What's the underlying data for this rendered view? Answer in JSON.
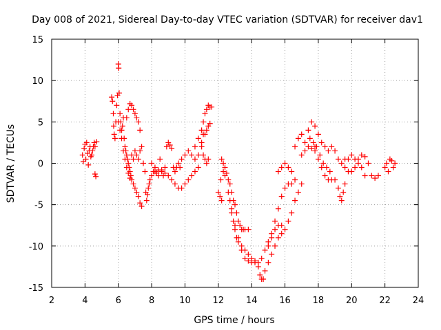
{
  "chart_data": {
    "type": "scatter",
    "title": "Day 008 of 2021, Sidereal Day-to-day VTEC variation (SDTVAR) for receiver dav1",
    "xlabel": "GPS time / hours",
    "ylabel": "SDTVAR / TECUs",
    "xlim": [
      2,
      24
    ],
    "ylim": [
      -15,
      15
    ],
    "xticks": [
      2,
      4,
      6,
      8,
      10,
      12,
      14,
      16,
      18,
      20,
      22,
      24
    ],
    "yticks": [
      -15,
      -10,
      -5,
      0,
      5,
      10,
      15
    ],
    "xtick_labels": [
      "2",
      "4",
      "6",
      "8",
      "10",
      "12",
      "14",
      "16",
      "18",
      "20",
      "22",
      "24"
    ],
    "ytick_labels": [
      "-15",
      "-10",
      "-5",
      "0",
      "5",
      "10",
      "15"
    ],
    "grid": true,
    "marker": "+",
    "marker_color": "#ff0000",
    "series": [
      {
        "name": "SDTVAR",
        "points": [
          [
            3.85,
            1.0
          ],
          [
            3.9,
            0.2
          ],
          [
            3.95,
            1.8
          ],
          [
            4.0,
            2.3
          ],
          [
            4.05,
            0.5
          ],
          [
            4.1,
            2.5
          ],
          [
            4.15,
            1.2
          ],
          [
            4.2,
            -0.2
          ],
          [
            4.25,
            1.5
          ],
          [
            4.3,
            2.0
          ],
          [
            4.35,
            0.8
          ],
          [
            4.4,
            1.0
          ],
          [
            4.45,
            1.5
          ],
          [
            4.5,
            2.0
          ],
          [
            4.55,
            2.5
          ],
          [
            4.6,
            2.0
          ],
          [
            4.6,
            -1.3
          ],
          [
            4.65,
            -1.6
          ],
          [
            4.7,
            2.6
          ],
          [
            5.6,
            8.0
          ],
          [
            5.65,
            7.5
          ],
          [
            5.7,
            6.0
          ],
          [
            5.72,
            4.5
          ],
          [
            5.75,
            3.5
          ],
          [
            5.8,
            3.0
          ],
          [
            5.85,
            5.0
          ],
          [
            5.9,
            7.0
          ],
          [
            5.95,
            8.2
          ],
          [
            6.0,
            12.0
          ],
          [
            6.02,
            11.5
          ],
          [
            6.05,
            8.5
          ],
          [
            6.1,
            6.0
          ],
          [
            6.15,
            5.0
          ],
          [
            6.2,
            4.0
          ],
          [
            6.25,
            4.5
          ],
          [
            6.3,
            5.5
          ],
          [
            6.35,
            3.0
          ],
          [
            6.4,
            2.0
          ],
          [
            6.45,
            1.5
          ],
          [
            6.5,
            1.0
          ],
          [
            6.55,
            0.5
          ],
          [
            6.6,
            0.0
          ],
          [
            6.65,
            -0.5
          ],
          [
            6.7,
            -1.0
          ],
          [
            6.75,
            -1.5
          ],
          [
            6.8,
            -2.0
          ],
          [
            6.5,
            5.5
          ],
          [
            6.6,
            6.5
          ],
          [
            6.7,
            7.2
          ],
          [
            6.8,
            7.0
          ],
          [
            6.9,
            6.5
          ],
          [
            7.0,
            6.0
          ],
          [
            7.1,
            5.5
          ],
          [
            7.2,
            5.0
          ],
          [
            7.3,
            4.0
          ],
          [
            6.0,
            5.0
          ],
          [
            6.1,
            4.0
          ],
          [
            6.2,
            3.0
          ],
          [
            6.3,
            1.5
          ],
          [
            6.4,
            0.5
          ],
          [
            6.5,
            -0.5
          ],
          [
            6.6,
            -1.2
          ],
          [
            6.7,
            -1.8
          ],
          [
            6.9,
            -2.5
          ],
          [
            7.0,
            -3.0
          ],
          [
            7.1,
            -3.5
          ],
          [
            7.2,
            -4.0
          ],
          [
            7.3,
            -4.8
          ],
          [
            7.4,
            -5.2
          ],
          [
            6.8,
            1.0
          ],
          [
            6.9,
            0.5
          ],
          [
            7.0,
            1.5
          ],
          [
            7.1,
            1.0
          ],
          [
            7.2,
            0.5
          ],
          [
            7.3,
            1.5
          ],
          [
            7.4,
            2.0
          ],
          [
            7.5,
            0.0
          ],
          [
            7.6,
            -1.0
          ],
          [
            7.65,
            -3.5
          ],
          [
            7.7,
            -4.5
          ],
          [
            7.75,
            -3.8
          ],
          [
            7.8,
            -3.0
          ],
          [
            7.85,
            -2.5
          ],
          [
            7.9,
            -2.0
          ],
          [
            8.0,
            -1.5
          ],
          [
            8.1,
            -1.0
          ],
          [
            8.2,
            -0.5
          ],
          [
            8.3,
            -1.2
          ],
          [
            8.4,
            -0.8
          ],
          [
            8.5,
            0.5
          ],
          [
            8.6,
            -1.0
          ],
          [
            8.7,
            -1.5
          ],
          [
            8.8,
            -0.5
          ],
          [
            8.9,
            2.0
          ],
          [
            9.0,
            2.5
          ],
          [
            9.1,
            2.2
          ],
          [
            9.2,
            1.8
          ],
          [
            9.3,
            -0.5
          ],
          [
            9.4,
            -1.0
          ],
          [
            9.5,
            -0.5
          ],
          [
            9.6,
            0.0
          ],
          [
            9.7,
            -0.5
          ],
          [
            8.0,
            0.0
          ],
          [
            8.2,
            -1.0
          ],
          [
            8.4,
            -1.5
          ],
          [
            8.6,
            -0.8
          ],
          [
            8.8,
            -1.2
          ],
          [
            9.0,
            -1.5
          ],
          [
            9.2,
            -2.0
          ],
          [
            9.4,
            -2.5
          ],
          [
            9.6,
            -3.0
          ],
          [
            9.8,
            -3.0
          ],
          [
            10.0,
            -2.5
          ],
          [
            10.2,
            -2.0
          ],
          [
            10.4,
            -1.5
          ],
          [
            10.6,
            -1.0
          ],
          [
            10.8,
            -0.5
          ],
          [
            9.8,
            0.5
          ],
          [
            10.0,
            1.0
          ],
          [
            10.2,
            1.5
          ],
          [
            10.4,
            1.0
          ],
          [
            10.6,
            0.5
          ],
          [
            10.8,
            1.0
          ],
          [
            11.0,
            2.5
          ],
          [
            11.1,
            3.5
          ],
          [
            10.6,
            2.0
          ],
          [
            10.8,
            3.0
          ],
          [
            11.0,
            4.0
          ],
          [
            11.1,
            5.0
          ],
          [
            11.2,
            6.0
          ],
          [
            11.3,
            6.5
          ],
          [
            11.4,
            7.0
          ],
          [
            11.5,
            6.8
          ],
          [
            11.6,
            6.8
          ],
          [
            11.2,
            3.5
          ],
          [
            11.3,
            4.0
          ],
          [
            11.4,
            4.5
          ],
          [
            11.5,
            4.8
          ],
          [
            11.0,
            2.0
          ],
          [
            11.1,
            1.0
          ],
          [
            11.2,
            0.5
          ],
          [
            11.3,
            0.0
          ],
          [
            11.4,
            0.5
          ],
          [
            12.0,
            -3.5
          ],
          [
            12.1,
            -4.0
          ],
          [
            12.2,
            -4.5
          ],
          [
            12.15,
            -2.0
          ],
          [
            12.3,
            -1.0
          ],
          [
            12.4,
            -1.5
          ],
          [
            12.2,
            0.5
          ],
          [
            12.3,
            0.0
          ],
          [
            12.4,
            -0.5
          ],
          [
            12.5,
            -1.2
          ],
          [
            12.6,
            -2.0
          ],
          [
            12.7,
            -2.5
          ],
          [
            12.8,
            -3.5
          ],
          [
            12.9,
            -4.5
          ],
          [
            13.0,
            -5.0
          ],
          [
            13.1,
            -6.0
          ],
          [
            13.2,
            -7.0
          ],
          [
            13.3,
            -7.5
          ],
          [
            13.4,
            -8.0
          ],
          [
            13.5,
            -8.0
          ],
          [
            13.6,
            -8.0
          ],
          [
            13.8,
            -8.0
          ],
          [
            12.6,
            -3.5
          ],
          [
            12.7,
            -4.5
          ],
          [
            12.8,
            -5.5
          ],
          [
            12.9,
            -7.0
          ],
          [
            13.0,
            -8.0
          ],
          [
            13.1,
            -9.0
          ],
          [
            13.2,
            -9.5
          ],
          [
            13.4,
            -10.0
          ],
          [
            13.6,
            -10.5
          ],
          [
            13.8,
            -11.0
          ],
          [
            14.0,
            -11.5
          ],
          [
            14.2,
            -11.8
          ],
          [
            14.4,
            -12.0
          ],
          [
            14.6,
            -11.5
          ],
          [
            14.8,
            -10.5
          ],
          [
            15.0,
            -9.5
          ],
          [
            15.2,
            -8.5
          ],
          [
            15.4,
            -8.0
          ],
          [
            15.6,
            -7.5
          ],
          [
            15.8,
            -7.5
          ],
          [
            12.8,
            -6.0
          ],
          [
            13.0,
            -7.5
          ],
          [
            13.2,
            -9.0
          ],
          [
            13.4,
            -10.5
          ],
          [
            13.6,
            -11.5
          ],
          [
            13.8,
            -11.8
          ],
          [
            14.0,
            -12.0
          ],
          [
            14.2,
            -12.0
          ],
          [
            14.4,
            -12.5
          ],
          [
            14.5,
            -13.5
          ],
          [
            14.6,
            -14.0
          ],
          [
            14.7,
            -14.0
          ],
          [
            14.8,
            -13.0
          ],
          [
            15.0,
            -12.0
          ],
          [
            15.2,
            -11.0
          ],
          [
            15.4,
            -10.0
          ],
          [
            15.6,
            -9.0
          ],
          [
            15.8,
            -8.5
          ],
          [
            16.0,
            -8.0
          ],
          [
            16.2,
            -7.0
          ],
          [
            16.4,
            -6.0
          ],
          [
            16.6,
            -4.5
          ],
          [
            16.8,
            -3.5
          ],
          [
            17.0,
            -2.5
          ],
          [
            15.0,
            -10.0
          ],
          [
            15.2,
            -9.0
          ],
          [
            15.4,
            -7.0
          ],
          [
            15.6,
            -5.5
          ],
          [
            15.8,
            -4.0
          ],
          [
            16.0,
            -3.0
          ],
          [
            16.2,
            -2.5
          ],
          [
            16.4,
            -2.5
          ],
          [
            16.6,
            -2.0
          ],
          [
            15.6,
            -1.0
          ],
          [
            15.8,
            -0.5
          ],
          [
            16.0,
            0.0
          ],
          [
            16.2,
            -0.5
          ],
          [
            16.4,
            -1.0
          ],
          [
            16.6,
            2.0
          ],
          [
            16.8,
            3.0
          ],
          [
            17.0,
            3.5
          ],
          [
            17.2,
            2.5
          ],
          [
            17.4,
            2.0
          ],
          [
            17.6,
            1.8
          ],
          [
            17.8,
            2.0
          ],
          [
            17.0,
            1.0
          ],
          [
            17.2,
            1.5
          ],
          [
            17.4,
            4.0
          ],
          [
            17.6,
            5.0
          ],
          [
            17.8,
            4.5
          ],
          [
            18.0,
            3.5
          ],
          [
            18.2,
            2.5
          ],
          [
            18.4,
            2.0
          ],
          [
            17.5,
            3.0
          ],
          [
            17.7,
            2.5
          ],
          [
            17.9,
            2.0
          ],
          [
            18.1,
            1.0
          ],
          [
            18.3,
            0.0
          ],
          [
            18.5,
            -0.5
          ],
          [
            18.7,
            -1.0
          ],
          [
            17.8,
            1.5
          ],
          [
            18.0,
            0.5
          ],
          [
            18.2,
            -0.5
          ],
          [
            18.4,
            -1.5
          ],
          [
            18.6,
            -2.0
          ],
          [
            18.8,
            -2.0
          ],
          [
            19.0,
            -2.0
          ],
          [
            18.6,
            1.5
          ],
          [
            18.8,
            2.0
          ],
          [
            19.0,
            1.5
          ],
          [
            19.2,
            0.5
          ],
          [
            19.4,
            0.0
          ],
          [
            19.6,
            -0.5
          ],
          [
            19.8,
            -1.0
          ],
          [
            19.2,
            -3.0
          ],
          [
            19.3,
            -4.0
          ],
          [
            19.4,
            -4.5
          ],
          [
            19.5,
            -3.5
          ],
          [
            19.6,
            -2.5
          ],
          [
            19.6,
            0.5
          ],
          [
            19.8,
            0.5
          ],
          [
            20.0,
            1.0
          ],
          [
            20.2,
            0.5
          ],
          [
            20.4,
            0.0
          ],
          [
            20.6,
            -0.5
          ],
          [
            20.8,
            -1.5
          ],
          [
            20.0,
            -1.0
          ],
          [
            20.2,
            -0.5
          ],
          [
            20.4,
            0.5
          ],
          [
            20.6,
            1.0
          ],
          [
            20.8,
            0.8
          ],
          [
            21.0,
            0.0
          ],
          [
            21.2,
            -1.5
          ],
          [
            21.4,
            -1.8
          ],
          [
            21.6,
            -1.5
          ],
          [
            22.0,
            -0.5
          ],
          [
            22.1,
            0.0
          ],
          [
            22.2,
            -1.0
          ],
          [
            22.3,
            0.5
          ],
          [
            22.4,
            0.3
          ],
          [
            22.5,
            -0.5
          ],
          [
            22.6,
            0.0
          ]
        ]
      }
    ]
  }
}
